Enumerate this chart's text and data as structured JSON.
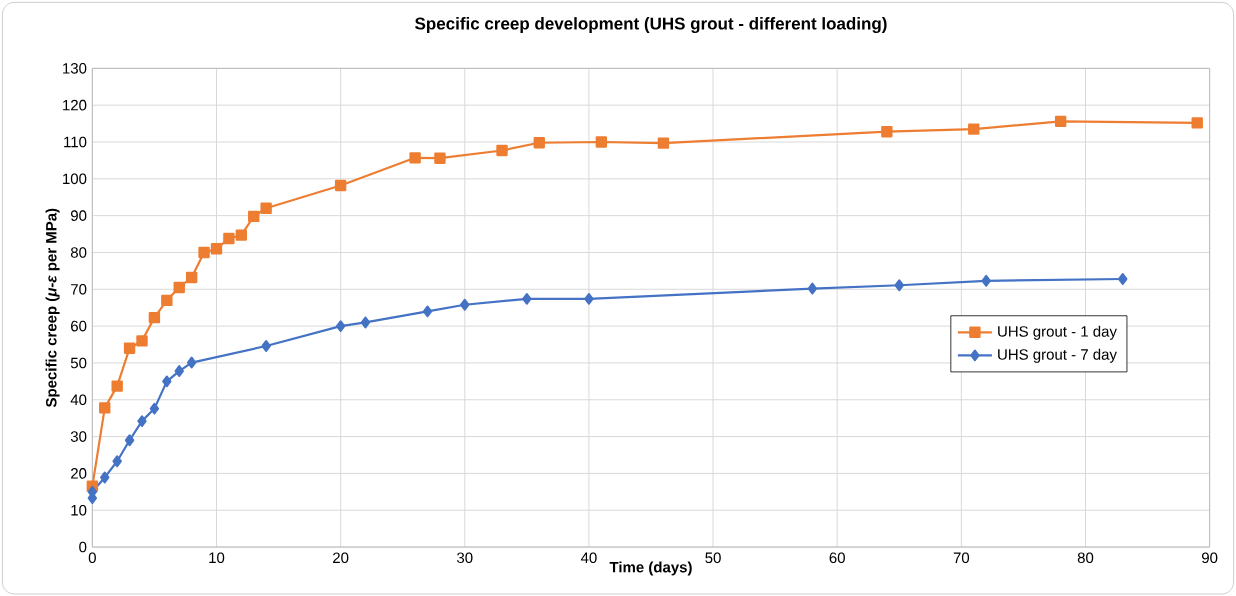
{
  "chart_data": {
    "type": "line",
    "title": "Specific creep development (UHS grout - different loading)",
    "xlabel": "Time (days)",
    "ylabel": "Specific creep (*μ-ε* per MPa)",
    "xlim": [
      0,
      90
    ],
    "xticks": [
      0,
      10,
      20,
      30,
      40,
      50,
      60,
      70,
      80,
      90
    ],
    "ylim": [
      0,
      130
    ],
    "yticks": [
      0,
      10,
      20,
      30,
      40,
      50,
      60,
      70,
      80,
      90,
      100,
      110,
      120,
      130
    ],
    "grid": true,
    "legend": "right",
    "series": [
      {
        "name": "UHS grout - 1 day",
        "color": "#ed7d31",
        "marker": "square",
        "x": [
          0,
          1,
          2,
          3,
          4,
          5,
          6,
          7,
          8,
          9,
          10,
          11,
          12,
          13,
          14,
          20,
          26,
          28,
          33,
          36,
          41,
          46,
          64,
          71,
          78,
          89
        ],
        "values": [
          16.5,
          37.8,
          43.7,
          54,
          56,
          62.3,
          67,
          70.5,
          73.2,
          80,
          81,
          83.8,
          84.7,
          89.8,
          92,
          98.2,
          105.7,
          105.6,
          107.7,
          109.8,
          110,
          109.7,
          112.8,
          113.5,
          115.6,
          115.2
        ]
      },
      {
        "name": "UHS grout - 7 day",
        "color": "#4472c4",
        "marker": "diamond",
        "x": [
          0,
          0,
          1,
          2,
          3,
          4,
          5,
          6,
          7,
          8,
          14,
          20,
          22,
          27,
          30,
          35,
          40,
          58,
          65,
          72,
          83
        ],
        "values": [
          13.3,
          15,
          18.9,
          23.3,
          29,
          34.2,
          37.6,
          45,
          47.8,
          50.1,
          54.6,
          60,
          61,
          64,
          65.8,
          67.4,
          67.4,
          70.2,
          71.1,
          72.3,
          72.8
        ]
      }
    ]
  }
}
